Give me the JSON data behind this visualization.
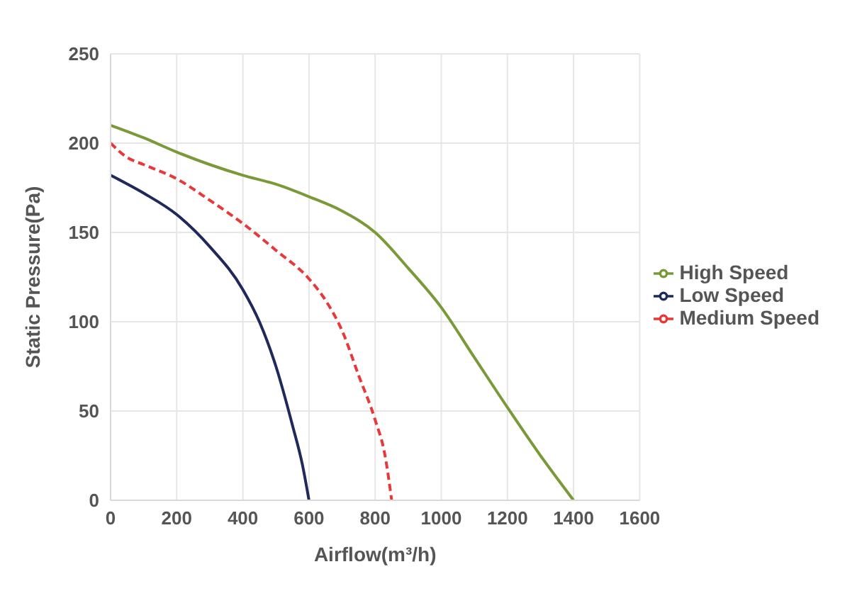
{
  "chart_data": {
    "type": "line",
    "xlabel": "Airflow(m³/h)",
    "ylabel": "Static Pressure(Pa)",
    "xlim": [
      0,
      1600
    ],
    "xticks": [
      0,
      200,
      400,
      600,
      800,
      1000,
      1200,
      1400,
      1600
    ],
    "ylim": [
      0,
      250
    ],
    "yticks": [
      0,
      50,
      100,
      150,
      200,
      250
    ],
    "grid": true,
    "legend": "right",
    "marker": "none",
    "series": [
      {
        "name": "Low Speed",
        "color": "#1f2a5a",
        "line_style": "solid",
        "x": [
          0,
          100,
          200,
          300,
          400,
          450,
          500,
          550,
          580,
          600
        ],
        "values": [
          182,
          172,
          160,
          142,
          118,
          100,
          75,
          42,
          20,
          0
        ]
      },
      {
        "name": "High Speed",
        "color": "#7a9a3a",
        "line_style": "solid",
        "x": [
          0,
          100,
          200,
          300,
          400,
          500,
          600,
          700,
          800,
          900,
          1000,
          1100,
          1200,
          1300,
          1400
        ],
        "values": [
          210,
          203,
          195,
          188,
          182,
          177,
          170,
          162,
          150,
          130,
          108,
          80,
          52,
          25,
          0
        ]
      },
      {
        "name": "Medium Speed",
        "color": "#e8383a",
        "line_style": "dashed",
        "x": [
          0,
          50,
          100,
          200,
          300,
          400,
          500,
          600,
          650,
          700,
          750,
          800,
          830,
          850
        ],
        "values": [
          200,
          192,
          188,
          180,
          168,
          155,
          140,
          124,
          112,
          95,
          70,
          45,
          25,
          0
        ]
      }
    ]
  }
}
